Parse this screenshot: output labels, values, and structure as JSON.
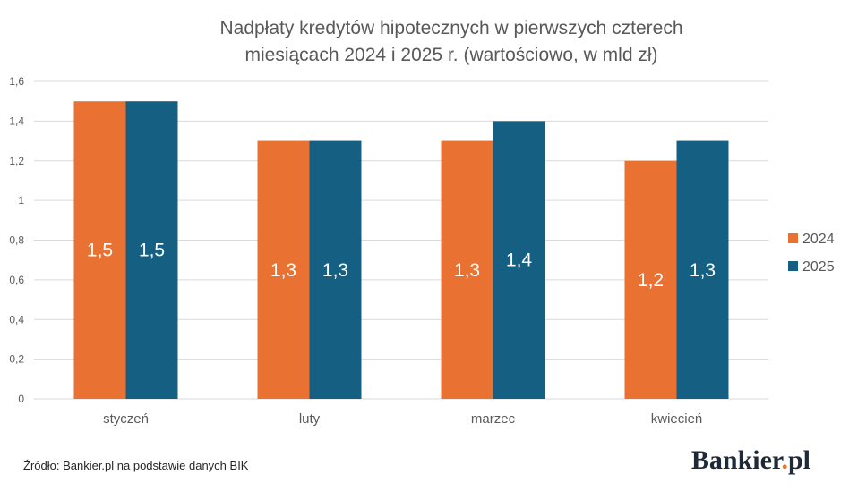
{
  "chart_data": {
    "type": "bar",
    "title_lines": [
      "Nadpłaty kredytów hipotecznych w pierwszych czterech",
      "miesiącach 2024 i 2025 r. (wartościowo, w mld zł)"
    ],
    "categories": [
      "styczeń",
      "luty",
      "marzec",
      "kwiecień"
    ],
    "series": [
      {
        "name": "2024",
        "values": [
          1.5,
          1.3,
          1.3,
          1.2
        ],
        "labels": [
          "1,5",
          "1,3",
          "1,3",
          "1,2"
        ],
        "color": "#E97132"
      },
      {
        "name": "2025",
        "values": [
          1.5,
          1.3,
          1.4,
          1.3
        ],
        "labels": [
          "1,5",
          "1,3",
          "1,4",
          "1,3"
        ],
        "color": "#156082"
      }
    ],
    "ylim": [
      0,
      1.6
    ],
    "yticks": [
      0,
      0.2,
      0.4,
      0.6,
      0.8,
      1,
      1.2,
      1.4,
      1.6
    ],
    "ytick_labels": [
      "0",
      "0,2",
      "0,4",
      "0,6",
      "0,8",
      "1",
      "1,2",
      "1,4",
      "1,6"
    ],
    "grid": true,
    "legend_position": "right",
    "xlabel": "",
    "ylabel": ""
  },
  "footer": {
    "source": "Źródło: Bankier.pl na podstawie danych BIK",
    "brand_main": "Bankier",
    "brand_dot": ".",
    "brand_suffix": "pl"
  },
  "colors": {
    "grid": "#D9D9D9",
    "axis": "#D9D9D9",
    "text": "#595959"
  }
}
